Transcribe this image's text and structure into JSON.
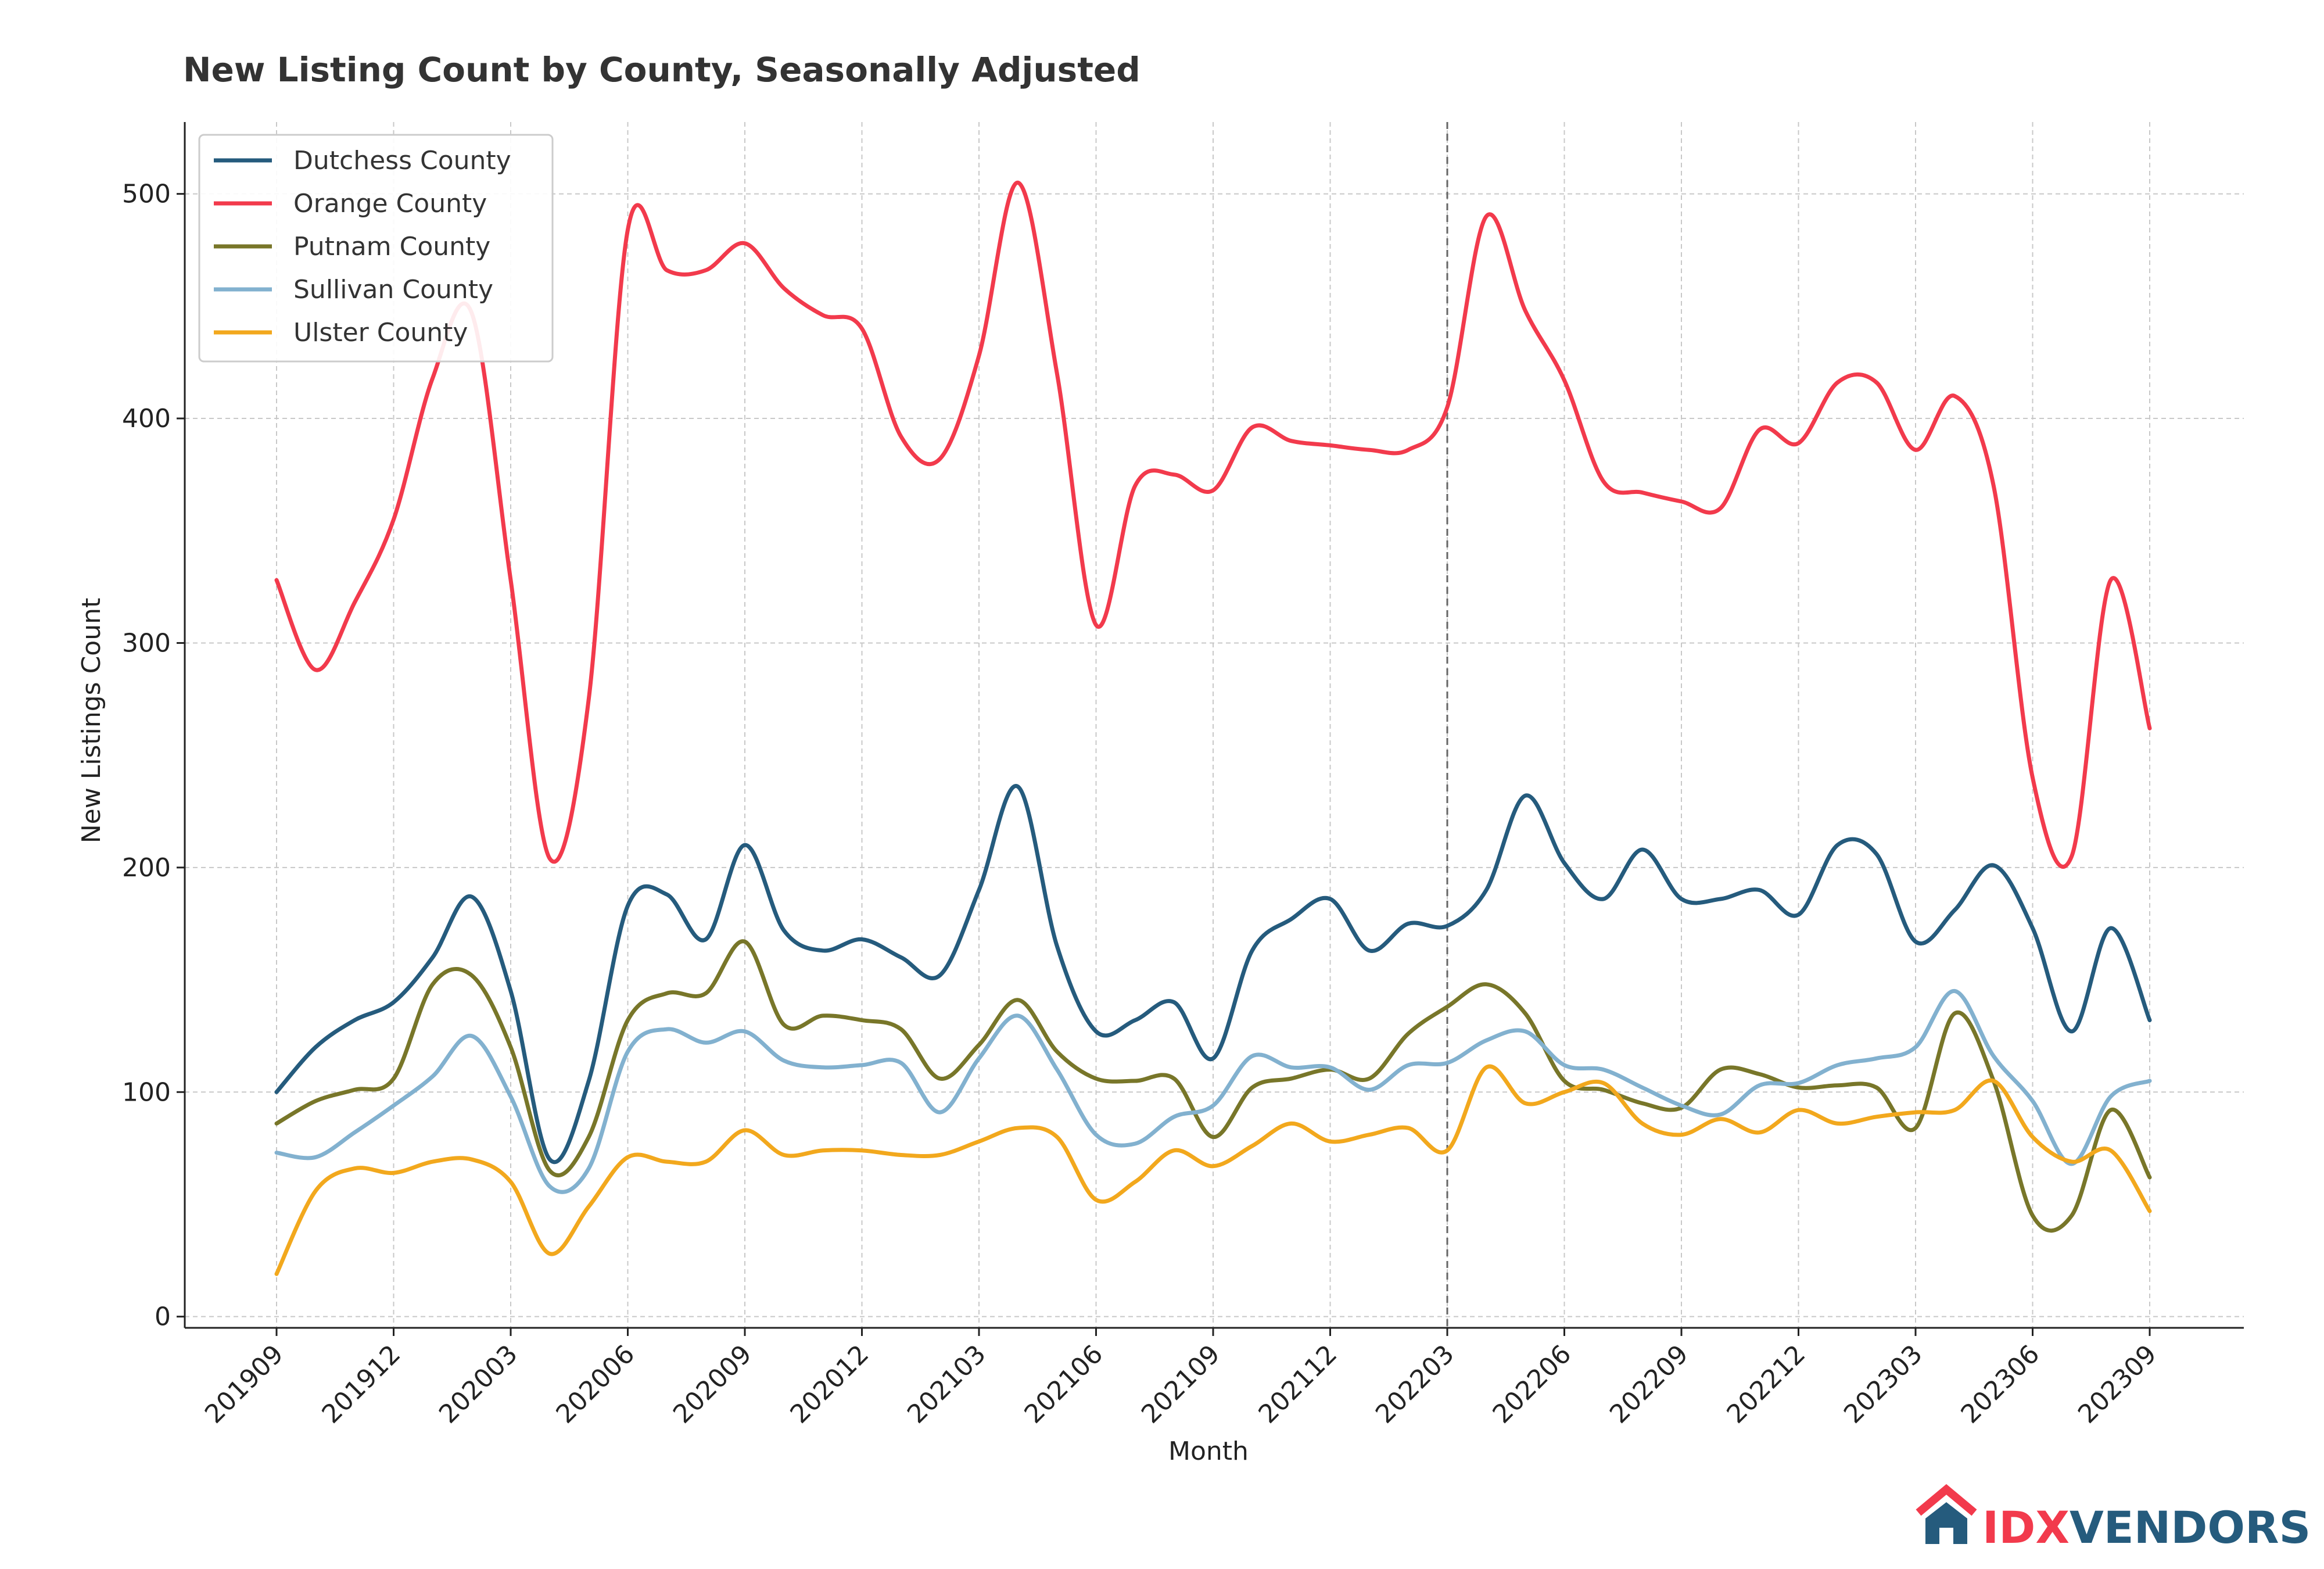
{
  "chart_data": {
    "type": "line",
    "title": "New Listing Count by County, Seasonally Adjusted",
    "xlabel": "Month",
    "ylabel": "New Listings Count",
    "ylim": [
      -5,
      532
    ],
    "yticks": [
      0,
      100,
      200,
      300,
      400,
      500
    ],
    "grid": true,
    "legend_position": "top-left",
    "x": [
      "201909",
      "201910",
      "201911",
      "201912",
      "202001",
      "202002",
      "202003",
      "202004",
      "202005",
      "202006",
      "202007",
      "202008",
      "202009",
      "202010",
      "202011",
      "202012",
      "202101",
      "202102",
      "202103",
      "202104",
      "202105",
      "202106",
      "202107",
      "202108",
      "202109",
      "202110",
      "202111",
      "202112",
      "202201",
      "202202",
      "202203",
      "202204",
      "202205",
      "202206",
      "202207",
      "202208",
      "202209",
      "202210",
      "202211",
      "202212",
      "202301",
      "202302",
      "202303",
      "202304",
      "202305",
      "202306",
      "202307",
      "202308",
      "202309"
    ],
    "xticks": [
      "201909",
      "201912",
      "202003",
      "202006",
      "202009",
      "202012",
      "202103",
      "202106",
      "202109",
      "202112",
      "202203",
      "202206",
      "202209",
      "202212",
      "202303",
      "202306",
      "202309"
    ],
    "reference_line_x": "202203",
    "series": [
      {
        "name": "Dutchess County",
        "color": "#255b7d",
        "values": [
          100,
          120,
          132,
          140,
          160,
          187,
          145,
          70,
          105,
          183,
          188,
          168,
          210,
          172,
          163,
          168,
          160,
          152,
          190,
          236,
          165,
          127,
          132,
          140,
          115,
          163,
          177,
          186,
          163,
          175,
          174,
          190,
          232,
          202,
          186,
          208,
          186,
          186,
          190,
          179,
          210,
          206,
          167,
          181,
          201,
          173,
          127,
          173,
          132
        ]
      },
      {
        "name": "Orange County",
        "color": "#f23a4c",
        "values": [
          328,
          288,
          318,
          355,
          418,
          447,
          328,
          204,
          275,
          484,
          466,
          466,
          478,
          458,
          446,
          440,
          392,
          382,
          428,
          505,
          420,
          308,
          370,
          375,
          368,
          396,
          390,
          388,
          386,
          386,
          405,
          490,
          448,
          417,
          372,
          367,
          363,
          360,
          395,
          389,
          416,
          416,
          386,
          410,
          370,
          240,
          205,
          328,
          262
        ]
      },
      {
        "name": "Putnam County",
        "color": "#787629",
        "values": [
          86,
          96,
          101,
          106,
          148,
          152,
          120,
          65,
          80,
          132,
          144,
          144,
          167,
          130,
          134,
          132,
          128,
          106,
          121,
          141,
          118,
          106,
          105,
          106,
          80,
          102,
          106,
          110,
          106,
          126,
          138,
          148,
          135,
          105,
          101,
          95,
          93,
          110,
          108,
          102,
          103,
          102,
          84,
          135,
          105,
          45,
          45,
          92,
          62
        ]
      },
      {
        "name": "Sullivan County",
        "color": "#82b1cf",
        "values": [
          73,
          71,
          82,
          94,
          107,
          125,
          98,
          58,
          66,
          118,
          128,
          122,
          127,
          114,
          111,
          112,
          113,
          91,
          115,
          134,
          110,
          81,
          77,
          89,
          94,
          116,
          111,
          111,
          101,
          112,
          113,
          123,
          127,
          112,
          110,
          102,
          94,
          90,
          103,
          104,
          112,
          115,
          120,
          145,
          116,
          96,
          68,
          98,
          105
        ]
      },
      {
        "name": "Ulster County",
        "color": "#f2a81d",
        "values": [
          19,
          56,
          66,
          64,
          69,
          70,
          60,
          28,
          49,
          71,
          69,
          69,
          83,
          72,
          74,
          74,
          72,
          72,
          78,
          84,
          80,
          52,
          60,
          74,
          67,
          76,
          86,
          78,
          81,
          84,
          74,
          111,
          95,
          100,
          104,
          86,
          81,
          88,
          82,
          92,
          86,
          89,
          91,
          92,
          105,
          80,
          69,
          74,
          47
        ]
      }
    ]
  },
  "logo": {
    "prefix": "IDX",
    "suffix": "VENDORS",
    "house_color": "#f23a4c",
    "roof_accent": "#255b7d"
  }
}
